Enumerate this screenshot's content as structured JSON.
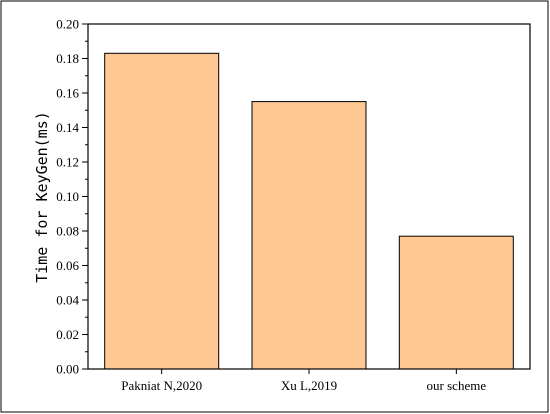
{
  "chart_data": {
    "type": "bar",
    "title": "",
    "xlabel": "",
    "ylabel": "Time for KeyGen(ms)",
    "categories": [
      "Pakniat N,2020",
      "Xu L,2019",
      "our scheme"
    ],
    "values": [
      0.183,
      0.155,
      0.077
    ],
    "ylim": [
      0,
      0.2
    ],
    "yticks": [
      "0.00",
      "0.02",
      "0.04",
      "0.06",
      "0.08",
      "0.10",
      "0.12",
      "0.14",
      "0.16",
      "0.18",
      "0.20"
    ],
    "bar_color": "#FFC995",
    "grid": false,
    "legend": "none"
  }
}
